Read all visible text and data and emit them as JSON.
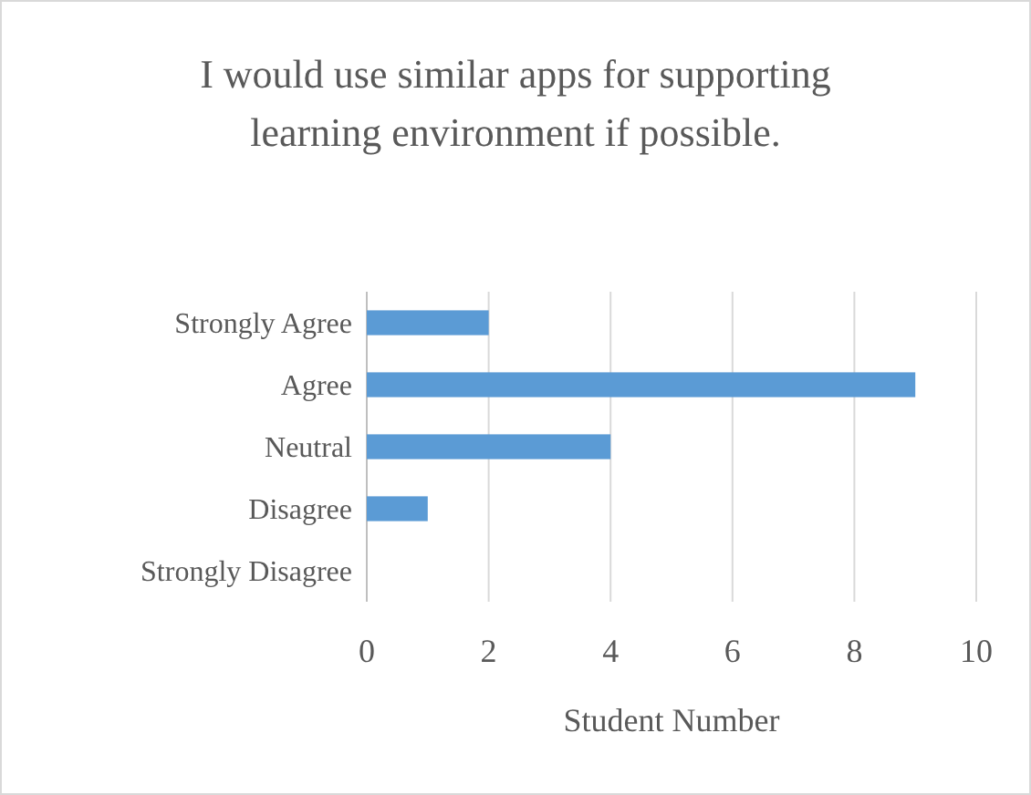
{
  "chart_data": {
    "type": "bar",
    "orientation": "horizontal",
    "title": "I would use similar apps for supporting learning environment if possible.",
    "xlabel": "Student Number",
    "categories": [
      "Strongly Agree",
      "Agree",
      "Neutral",
      "Disagree",
      "Strongly Disagree"
    ],
    "values": [
      2,
      9,
      4,
      1,
      0
    ],
    "color": "#5b9bd5",
    "xlim": [
      0,
      10
    ],
    "xticks": [
      0,
      2,
      4,
      6,
      8,
      10
    ],
    "grid": "x"
  }
}
